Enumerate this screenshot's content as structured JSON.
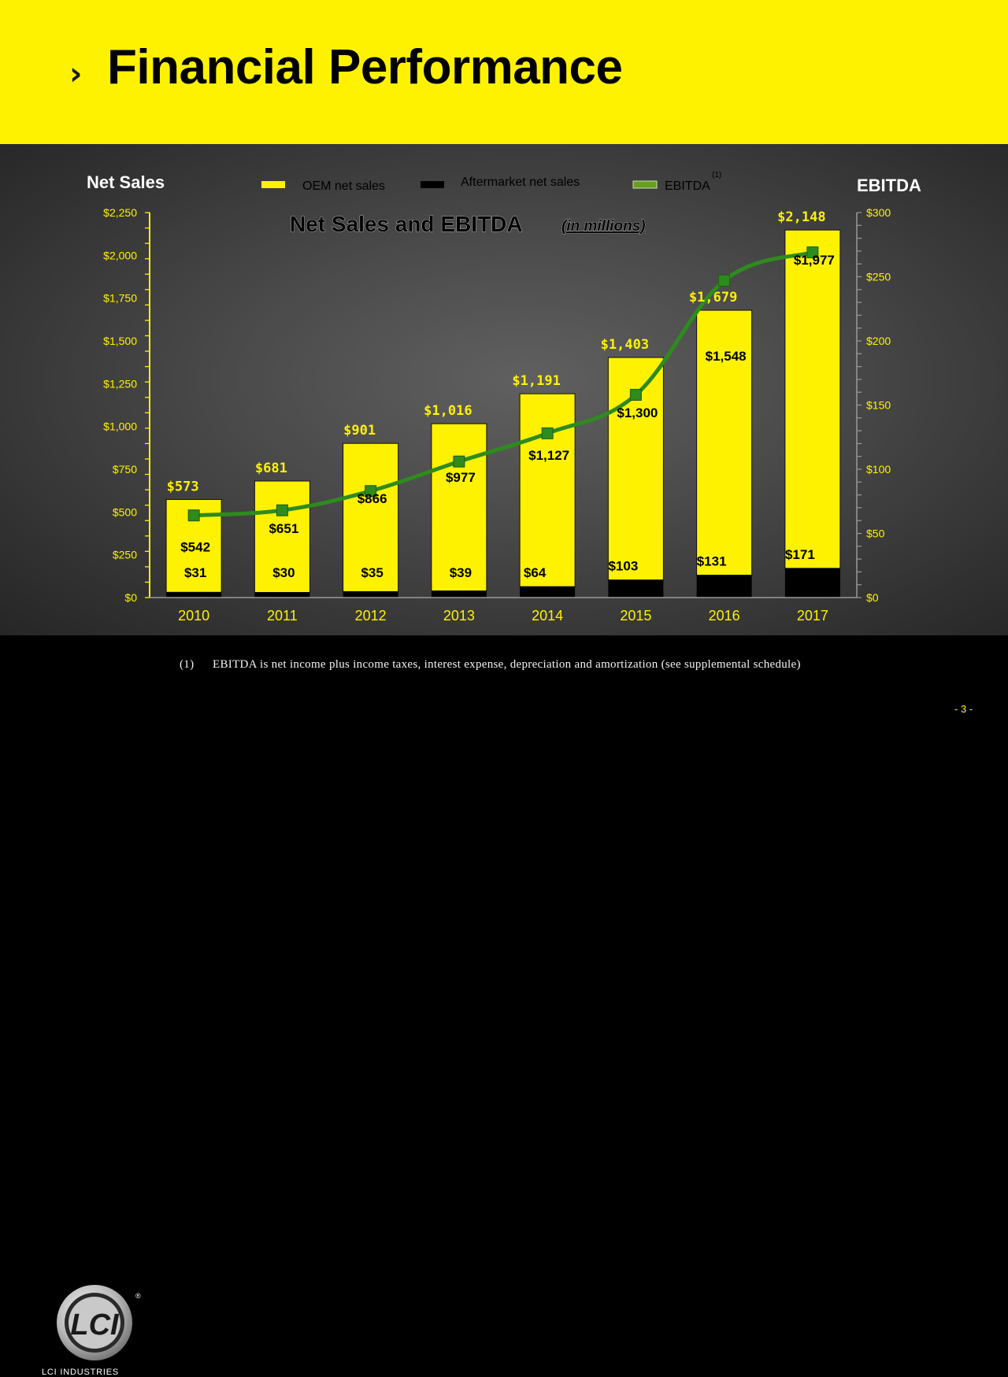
{
  "slide": {
    "title": "Financial Performance",
    "page_number": "- 3 -",
    "footnote_number": "(1)",
    "footnote_text": "EBITDA is net income plus income taxes, interest expense, depreciation and amortization (see supplemental schedule)",
    "logo_text": "LCI INDUSTRIES",
    "logo_mark": "LCI",
    "logo_reg": "®"
  },
  "colors": {
    "yellow": "#fff200",
    "black": "#000000",
    "ebitda_green": "#2e8b1e",
    "ebitda_marker": "#66a01e",
    "oem_label": "#fff200",
    "aftermarket_label": "#000000",
    "ebitda_label": "#000000"
  },
  "chart_data": {
    "type": "bar",
    "title": "Net Sales and EBITDA",
    "title_suffix": "(in millions)",
    "left_axis_title": "Net Sales",
    "right_axis_title": "EBITDA",
    "categories": [
      "2010",
      "2011",
      "2012",
      "2013",
      "2014",
      "2015",
      "2016",
      "2017"
    ],
    "ylim": [
      0,
      2250
    ],
    "y2lim": [
      0,
      300
    ],
    "yticks": [
      0,
      250,
      500,
      750,
      1000,
      1250,
      1500,
      1750,
      2000,
      2250
    ],
    "yticks_labels": [
      "$0",
      "$250",
      "$500",
      "$750",
      "$1,000",
      "$1,250",
      "$1,500",
      "$1,750",
      "$2,000",
      "$2,250"
    ],
    "y2ticks": [
      0,
      50,
      100,
      150,
      200,
      250,
      300
    ],
    "y2ticks_labels": [
      "$0",
      "$50",
      "$100",
      "$150",
      "$200",
      "$250",
      "$300"
    ],
    "stacked": true,
    "legend": {
      "position": "top",
      "footnote_marker": "(1)"
    },
    "series": [
      {
        "name": "Aftermarket net sales",
        "type": "bar",
        "axis": "left",
        "color": "#000000",
        "values": [
          31,
          30,
          35,
          39,
          64,
          103,
          131,
          171
        ],
        "labels": [
          "$31",
          "$30",
          "$35",
          "$39",
          "$64",
          "$103",
          "$131",
          "$171"
        ]
      },
      {
        "name": "OEM net sales",
        "type": "bar",
        "axis": "left",
        "color": "#fff200",
        "values": [
          542,
          651,
          866,
          977,
          1127,
          1300,
          1548,
          1977
        ],
        "labels": [
          "$542",
          "$651",
          "$866",
          "$977",
          "$1,127",
          "$1,300",
          "$1,548",
          "$1,977"
        ]
      },
      {
        "name": "EBITDA",
        "type": "line",
        "axis": "right",
        "color": "#2e8b1e",
        "values": [
          64,
          68,
          83,
          106,
          128,
          158,
          247,
          269
        ]
      }
    ],
    "totals": [
      573,
      681,
      901,
      1016,
      1191,
      1403,
      1679,
      2148
    ],
    "totals_labels": [
      "$573",
      "$681",
      "$901",
      "$1,016",
      "$1,191",
      "$1,403",
      "$1,679",
      "$2,148"
    ]
  }
}
